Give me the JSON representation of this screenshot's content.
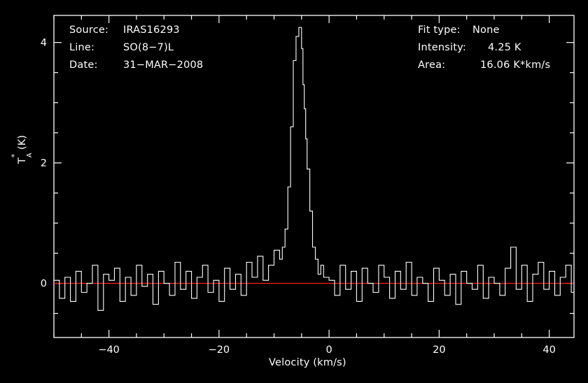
{
  "info_left": [
    {
      "key": "Source:",
      "value": "IRAS16293"
    },
    {
      "key": "Line:",
      "value": "SO(8−7)L"
    },
    {
      "key": "Date:",
      "value": "31−MAR−2008"
    }
  ],
  "info_right": [
    {
      "key": "Fit type:",
      "value": "None"
    },
    {
      "key": "Intensity:",
      "value": "4.25 K"
    },
    {
      "key": "Area:",
      "value": "16.06 K*km/s"
    }
  ],
  "chart_data": {
    "type": "line",
    "xlabel": "Velocity (km/s)",
    "ylabel_main": "T",
    "ylabel_sup": "*",
    "ylabel_sub": "A",
    "ylabel_unit": "(K)",
    "xlim": [
      -50,
      44.5
    ],
    "ylim": [
      -0.9,
      4.45
    ],
    "xticks_major": [
      -40,
      -20,
      0,
      20,
      40
    ],
    "xtick_labels": [
      "−40",
      "−20",
      "0",
      "20",
      "40"
    ],
    "yticks_major": [
      0,
      2,
      4
    ],
    "ytick_labels": [
      "0",
      "2",
      "4"
    ],
    "baseline": 0,
    "colors": {
      "background": "#000000",
      "axes": "#ffffff",
      "spectrum": "#ffffff",
      "baseline": "#ff2020"
    },
    "series": [
      {
        "x": [
          -50,
          -49,
          -48,
          -47,
          -46,
          -45,
          -44,
          -43,
          -42,
          -41,
          -40,
          -39,
          -38,
          -37,
          -36,
          -35,
          -34,
          -33,
          -32,
          -31,
          -30,
          -29,
          -28,
          -27,
          -26,
          -25,
          -24,
          -23,
          -22,
          -21,
          -20,
          -19,
          -18,
          -17,
          -16,
          -15,
          -14,
          -13,
          -12,
          -11,
          -10,
          -9,
          -8.5,
          -8,
          -7.5,
          -7,
          -6.5,
          -6,
          -5.5,
          -5,
          -4.75,
          -4.5,
          -4.25,
          -4,
          -3.5,
          -3,
          -2.5,
          -2,
          -1.5,
          -1,
          0,
          1,
          2,
          3,
          4,
          5,
          6,
          7,
          8,
          9,
          10,
          11,
          12,
          13,
          14,
          15,
          16,
          17,
          18,
          19,
          20,
          21,
          22,
          23,
          24,
          25,
          26,
          27,
          28,
          29,
          30,
          31,
          32,
          33,
          34,
          35,
          36,
          37,
          38,
          39,
          40,
          41,
          42,
          43,
          44,
          44.5
        ],
        "y": [
          0.05,
          -0.25,
          0.1,
          -0.3,
          0.2,
          -0.15,
          0.0,
          0.3,
          -0.45,
          0.15,
          0.05,
          0.25,
          -0.3,
          0.1,
          -0.2,
          0.3,
          -0.05,
          0.15,
          -0.35,
          0.2,
          0.0,
          -0.2,
          0.35,
          -0.1,
          0.2,
          -0.25,
          0.1,
          0.3,
          -0.15,
          0.05,
          -0.3,
          0.25,
          -0.1,
          0.15,
          -0.2,
          0.35,
          0.1,
          0.45,
          0.05,
          0.3,
          0.55,
          0.4,
          0.6,
          0.9,
          1.6,
          2.6,
          3.7,
          4.1,
          4.25,
          3.9,
          3.3,
          2.9,
          2.4,
          1.9,
          1.2,
          0.6,
          0.4,
          0.15,
          0.3,
          0.1,
          0.05,
          -0.2,
          0.3,
          -0.1,
          0.2,
          -0.3,
          0.25,
          0.0,
          -0.15,
          0.3,
          0.1,
          -0.25,
          0.2,
          -0.1,
          0.35,
          -0.2,
          0.1,
          0.0,
          -0.3,
          0.25,
          0.05,
          -0.2,
          0.15,
          -0.35,
          0.2,
          0.0,
          -0.1,
          0.3,
          -0.25,
          0.1,
          0.0,
          -0.2,
          0.25,
          0.6,
          -0.1,
          0.3,
          -0.3,
          0.15,
          0.35,
          -0.1,
          0.2,
          -0.2,
          0.1,
          0.3,
          -0.15,
          0.2
        ]
      }
    ]
  }
}
